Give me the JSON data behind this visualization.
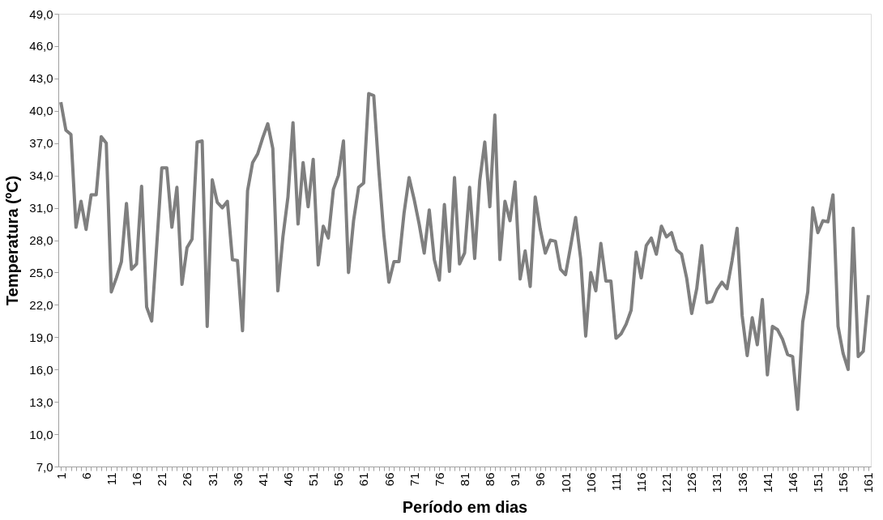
{
  "chart_data": {
    "type": "line",
    "xlabel": "Período em dias",
    "ylabel": "Temperatura (ºC)",
    "categories": [
      "1",
      null,
      null,
      null,
      null,
      "6",
      null,
      null,
      null,
      null,
      "11",
      null,
      null,
      null,
      null,
      "16",
      null,
      null,
      null,
      null,
      "21",
      null,
      null,
      null,
      null,
      "26",
      null,
      null,
      null,
      null,
      "31",
      null,
      null,
      null,
      null,
      "36",
      null,
      null,
      null,
      null,
      "41",
      null,
      null,
      null,
      null,
      "46",
      null,
      null,
      null,
      null,
      "51",
      null,
      null,
      null,
      null,
      "56",
      null,
      null,
      null,
      null,
      "61",
      null,
      null,
      null,
      null,
      "66",
      null,
      null,
      null,
      null,
      "71",
      null,
      null,
      null,
      null,
      "76",
      null,
      null,
      null,
      null,
      "81",
      null,
      null,
      null,
      null,
      "86",
      null,
      null,
      null,
      null,
      "91",
      null,
      null,
      null,
      null,
      "96",
      null,
      null,
      null,
      null,
      "101",
      null,
      null,
      null,
      null,
      "106",
      null,
      null,
      null,
      null,
      "111",
      null,
      null,
      null,
      null,
      "116",
      null,
      null,
      null,
      null,
      "121",
      null,
      null,
      null,
      null,
      "126",
      null,
      null,
      null,
      null,
      "131",
      null,
      null,
      null,
      null,
      "136",
      null,
      null,
      null,
      null,
      "141",
      null,
      null,
      null,
      null,
      "146",
      null,
      null,
      null,
      null,
      "151",
      null,
      null,
      null,
      null,
      "156",
      null,
      null,
      null,
      null,
      "161"
    ],
    "series": [
      {
        "color": "#7f7f7f",
        "values": [
          40.8,
          38.2,
          37.8,
          29.2,
          31.6,
          29.0,
          32.2,
          32.2,
          37.6,
          37.0,
          23.2,
          24.5,
          26.0,
          31.4,
          25.3,
          25.8,
          33.0,
          21.8,
          20.5,
          27.5,
          34.7,
          34.7,
          29.2,
          32.9,
          23.9,
          27.3,
          28.1,
          37.1,
          37.2,
          20.0,
          33.6,
          31.5,
          31.0,
          31.6,
          26.2,
          26.1,
          19.6,
          32.6,
          35.2,
          36.0,
          37.5,
          38.8,
          36.5,
          23.3,
          28.3,
          32.0,
          38.9,
          29.5,
          35.2,
          31.1,
          35.5,
          25.7,
          29.3,
          28.2,
          32.7,
          34.0,
          37.2,
          25.0,
          29.8,
          32.9,
          33.3,
          41.6,
          41.4,
          34.5,
          28.5,
          24.1,
          26.0,
          26.0,
          30.5,
          33.8,
          31.8,
          29.5,
          26.8,
          30.8,
          26.2,
          24.3,
          31.3,
          25.1,
          33.8,
          25.8,
          26.8,
          32.9,
          26.3,
          33.5,
          37.1,
          31.1,
          39.6,
          26.2,
          31.6,
          29.8,
          33.4,
          24.4,
          27.0,
          23.7,
          32.0,
          29.0,
          26.8,
          28.0,
          27.9,
          25.3,
          24.8,
          27.4,
          30.1,
          26.3,
          19.1,
          25.0,
          23.3,
          27.7,
          24.2,
          24.2,
          18.9,
          19.3,
          20.2,
          21.5,
          26.9,
          24.5,
          27.5,
          28.2,
          26.7,
          29.3,
          28.3,
          28.7,
          27.1,
          26.7,
          24.5,
          21.2,
          23.5,
          27.5,
          22.2,
          22.3,
          23.4,
          24.1,
          23.5,
          26.1,
          29.1,
          21.0,
          17.3,
          20.8,
          18.3,
          22.5,
          15.5,
          20.0,
          19.7,
          18.8,
          17.4,
          17.2,
          12.3,
          20.4,
          23.2,
          31.0,
          28.7,
          29.8,
          29.7,
          32.2,
          20.0,
          17.5,
          16.0,
          29.1,
          17.2,
          17.7,
          22.9
        ]
      }
    ],
    "ylim": [
      7,
      49
    ],
    "yticks": [
      {
        "value": 7,
        "label": "7,0"
      },
      {
        "value": 10,
        "label": "10,0"
      },
      {
        "value": 13,
        "label": "13,0"
      },
      {
        "value": 16,
        "label": "16,0"
      },
      {
        "value": 19,
        "label": "19,0"
      },
      {
        "value": 22,
        "label": "22,0"
      },
      {
        "value": 25,
        "label": "25,0"
      },
      {
        "value": 28,
        "label": "28,0"
      },
      {
        "value": 31,
        "label": "31,0"
      },
      {
        "value": 34,
        "label": "34,0"
      },
      {
        "value": 37,
        "label": "37,0"
      },
      {
        "value": 40,
        "label": "40,0"
      },
      {
        "value": 43,
        "label": "43,0"
      },
      {
        "value": 46,
        "label": "46,0"
      },
      {
        "value": 49,
        "label": "49,0"
      }
    ],
    "grid": false,
    "legend": false,
    "marker": "none",
    "line_style": "solid"
  }
}
